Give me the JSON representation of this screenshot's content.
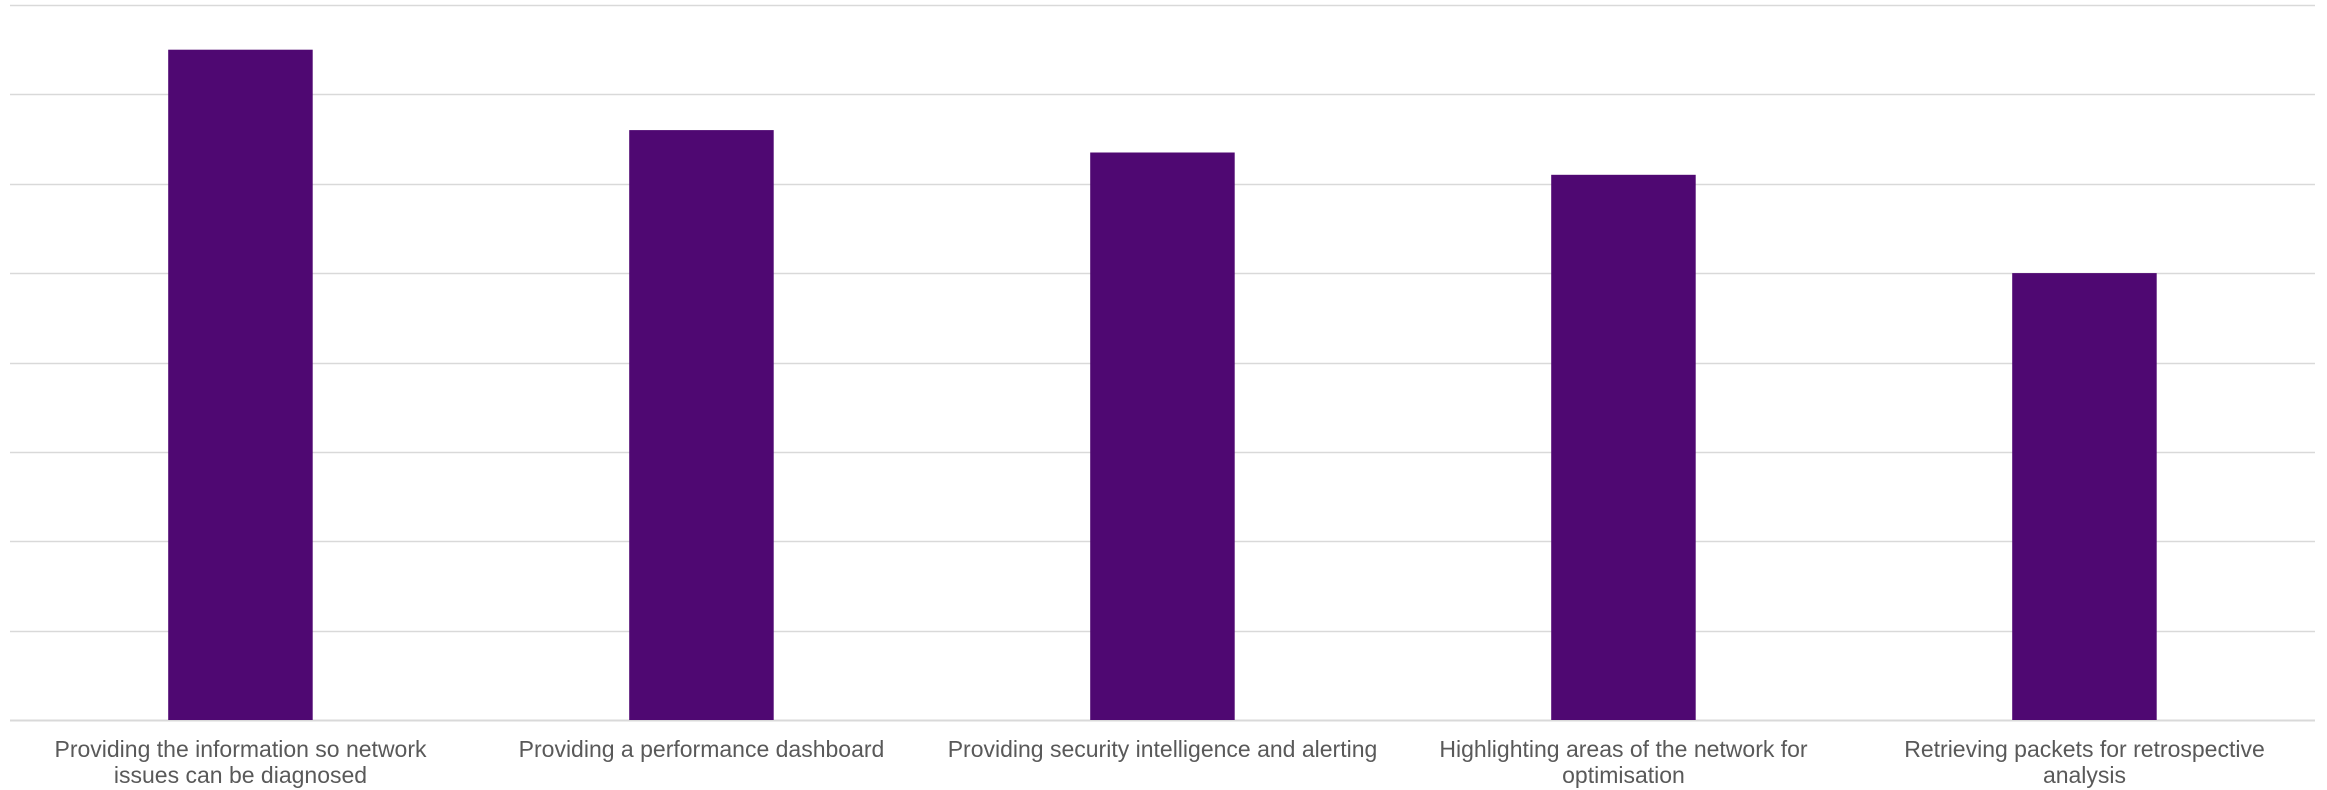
{
  "chart_data": {
    "type": "bar",
    "title": "",
    "xlabel": "",
    "ylabel": "",
    "categories": [
      "Providing the information so network issues can be diagnosed",
      "Providing a performance dashboard",
      "Providing security intelligence and alerting",
      "Highlighting areas of the network for optimisation",
      "Retrieving packets for retrospective analysis"
    ],
    "category_label_lines": [
      [
        "Providing the information so network",
        "issues can be diagnosed"
      ],
      [
        "Providing a performance dashboard"
      ],
      [
        "Providing security intelligence and alerting"
      ],
      [
        "Highlighting areas of the network for",
        "optimisation"
      ],
      [
        "Retrieving packets for retrospective",
        "analysis"
      ]
    ],
    "values": [
      0.75,
      0.66,
      0.635,
      0.61,
      0.5
    ],
    "ylim": [
      0,
      0.8
    ],
    "ytick_step": 0.1,
    "y_tick_labels_shown": false,
    "grid": true,
    "legend": "none",
    "colors": {
      "bar": "#4f0872",
      "grid": "#d9d9d9",
      "label": "#595959"
    }
  }
}
